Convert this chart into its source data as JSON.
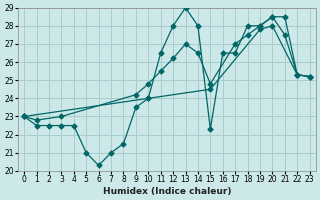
{
  "xlabel": "Humidex (Indice chaleur)",
  "bg_color": "#cde8e8",
  "grid_color": "#aacccc",
  "line_color": "#006666",
  "xlim": [
    -0.5,
    23.5
  ],
  "ylim": [
    20,
    29
  ],
  "xticks": [
    0,
    1,
    2,
    3,
    4,
    5,
    6,
    7,
    8,
    9,
    10,
    11,
    12,
    13,
    14,
    15,
    16,
    17,
    18,
    19,
    20,
    21,
    22,
    23
  ],
  "yticks": [
    20,
    21,
    22,
    23,
    24,
    25,
    26,
    27,
    28,
    29
  ],
  "line1_x": [
    0,
    1,
    2,
    3,
    4,
    5,
    6,
    7,
    8,
    9,
    10,
    11,
    12,
    13,
    14,
    15,
    16,
    17,
    18,
    19,
    20,
    21,
    22,
    23
  ],
  "line1_y": [
    23,
    22.5,
    22.5,
    22.5,
    22.5,
    21.0,
    20.3,
    21.0,
    21.5,
    23.5,
    24.0,
    26.5,
    28.0,
    29.0,
    28.0,
    22.3,
    26.5,
    26.5,
    28.0,
    28.0,
    28.5,
    27.5,
    25.3,
    25.2
  ],
  "line2_x": [
    0,
    1,
    3,
    9,
    10,
    11,
    12,
    13,
    14,
    15,
    17,
    18,
    19,
    20,
    21,
    22,
    23
  ],
  "line2_y": [
    23,
    22.8,
    23.0,
    24.2,
    24.8,
    25.5,
    26.2,
    27.0,
    26.5,
    24.8,
    27.0,
    27.5,
    28.0,
    28.5,
    28.5,
    25.3,
    25.2
  ],
  "line3_x": [
    0,
    10,
    15,
    19,
    20,
    22,
    23
  ],
  "line3_y": [
    23,
    24.0,
    24.5,
    27.8,
    28.0,
    25.3,
    25.2
  ]
}
